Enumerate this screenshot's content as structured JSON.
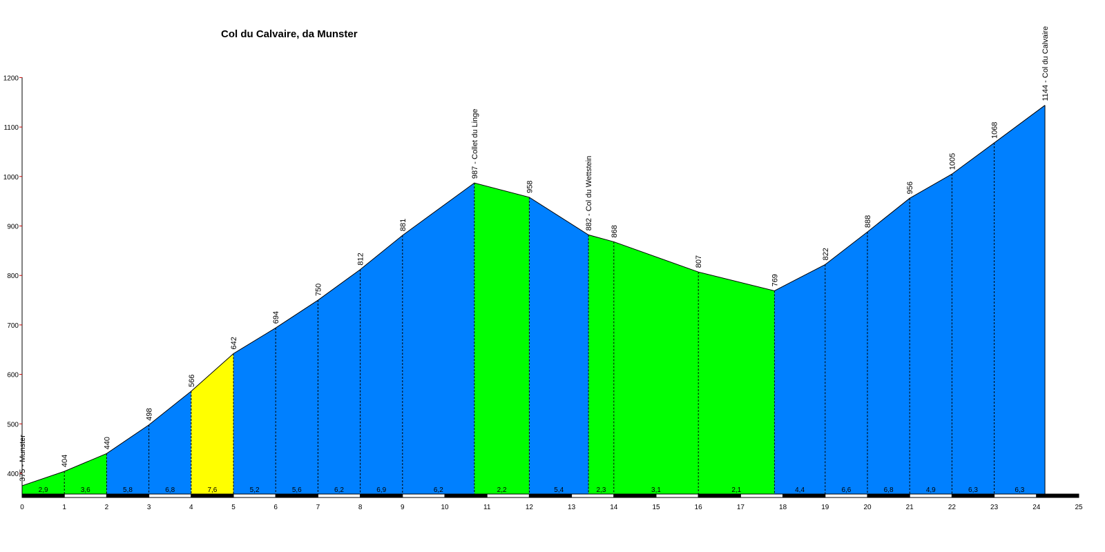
{
  "chart_data": {
    "type": "area",
    "title": "Col du Calvaire, da Munster",
    "xlabel": "",
    "ylabel": "",
    "xlim": [
      0,
      25
    ],
    "ylim": [
      350,
      1200
    ],
    "x_ticks": [
      "0",
      "1",
      "2",
      "3",
      "4",
      "5",
      "6",
      "7",
      "8",
      "9",
      "10",
      "11",
      "12",
      "13",
      "14",
      "15",
      "16",
      "17",
      "18",
      "19",
      "20",
      "21",
      "22",
      "23",
      "24",
      "25"
    ],
    "y_ticks": [
      "400",
      "500",
      "600",
      "700",
      "800",
      "900",
      "1000",
      "1100",
      "1200"
    ],
    "points": [
      {
        "x": 0,
        "y": 375,
        "label": "375 - Munster"
      },
      {
        "x": 1,
        "y": 404,
        "label": "404"
      },
      {
        "x": 2,
        "y": 440,
        "label": "440"
      },
      {
        "x": 3,
        "y": 498,
        "label": "498"
      },
      {
        "x": 4,
        "y": 566,
        "label": "566"
      },
      {
        "x": 5,
        "y": 642,
        "label": "642"
      },
      {
        "x": 6,
        "y": 694,
        "label": "694"
      },
      {
        "x": 7,
        "y": 750,
        "label": "750"
      },
      {
        "x": 8,
        "y": 812,
        "label": "812"
      },
      {
        "x": 9,
        "y": 881,
        "label": "881"
      },
      {
        "x": 10.7,
        "y": 987,
        "label": "987 - Collet du Linge"
      },
      {
        "x": 12,
        "y": 958,
        "label": "958"
      },
      {
        "x": 13.4,
        "y": 882,
        "label": "882 - Col du Wettstein"
      },
      {
        "x": 14,
        "y": 868,
        "label": "868"
      },
      {
        "x": 16,
        "y": 807,
        "label": "807"
      },
      {
        "x": 17.8,
        "y": 769,
        "label": "769"
      },
      {
        "x": 19,
        "y": 822,
        "label": "822"
      },
      {
        "x": 20,
        "y": 888,
        "label": "888"
      },
      {
        "x": 21,
        "y": 956,
        "label": "956"
      },
      {
        "x": 22,
        "y": 1005,
        "label": "1005"
      },
      {
        "x": 23,
        "y": 1068,
        "label": "1068"
      },
      {
        "x": 24.2,
        "y": 1144,
        "label": "1144 - Col du Calvaire"
      }
    ],
    "segment_gradients": [
      "2,9",
      "3,6",
      "5,8",
      "6,8",
      "7,6",
      "5,2",
      "5,6",
      "6,2",
      "6,9",
      "6,2",
      "2,2",
      "5,4",
      "2,3",
      "3,1",
      "2,1",
      "4,4",
      "6,6",
      "6,8",
      "4,9",
      "6,3",
      "6,3"
    ],
    "segment_colors": [
      "#00ff00",
      "#00ff00",
      "#0080ff",
      "#0080ff",
      "#ffff00",
      "#0080ff",
      "#0080ff",
      "#0080ff",
      "#0080ff",
      "#0080ff",
      "#00ff00",
      "#0080ff",
      "#00ff00",
      "#00ff00",
      "#00ff00",
      "#0080ff",
      "#0080ff",
      "#0080ff",
      "#0080ff",
      "#0080ff",
      "#0080ff"
    ],
    "grid": false
  },
  "colors": {
    "blue": "#0080ff",
    "green": "#00ff00",
    "yellow": "#ffff00",
    "axis": "#000000",
    "tick_mark": "#cc0000"
  }
}
